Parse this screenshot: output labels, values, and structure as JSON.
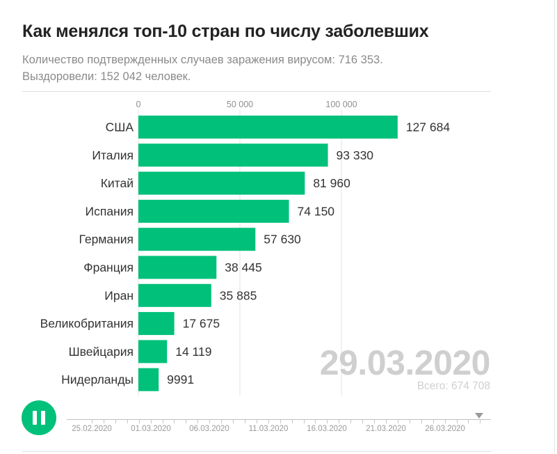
{
  "header": {
    "title": "Как менялся топ-10 стран по числу заболевших",
    "subtitle_line1": "Количество подтвержденных случаев заражения вирусом: 716 353.",
    "subtitle_line2": "Выздоровели: 152 042 человек."
  },
  "overlay": {
    "date": "29.03.2020",
    "total": "Всего: 674 708"
  },
  "player": {
    "state": "playing",
    "icon": "pause-icon",
    "accent_color": "#00c07a"
  },
  "timeline": {
    "tick_labels": [
      "25.02.2020",
      "01.03.2020",
      "06.03.2020",
      "11.03.2020",
      "16.03.2020",
      "21.03.2020",
      "26.03.2020"
    ],
    "start_date": "25.02.2020",
    "current_date": "29.03.2020"
  },
  "chart_data": {
    "type": "bar",
    "orientation": "horizontal",
    "categories": [
      "США",
      "Италия",
      "Китай",
      "Испания",
      "Германия",
      "Франция",
      "Иран",
      "Великобритания",
      "Швейцария",
      "Нидерланды"
    ],
    "values": [
      127684,
      93330,
      81960,
      74150,
      57630,
      38445,
      35885,
      17675,
      14119,
      9991
    ],
    "value_labels": [
      "127 684",
      "93 330",
      "81 960",
      "74 150",
      "57 630",
      "38 445",
      "35 885",
      "17 675",
      "14 119",
      "9991"
    ],
    "x_ticks": [
      0,
      50000,
      100000
    ],
    "x_tick_labels": [
      "0",
      "50 000",
      "100 000"
    ],
    "xlim": [
      0,
      175000
    ],
    "grid": true,
    "bar_color": "#00c07a"
  }
}
